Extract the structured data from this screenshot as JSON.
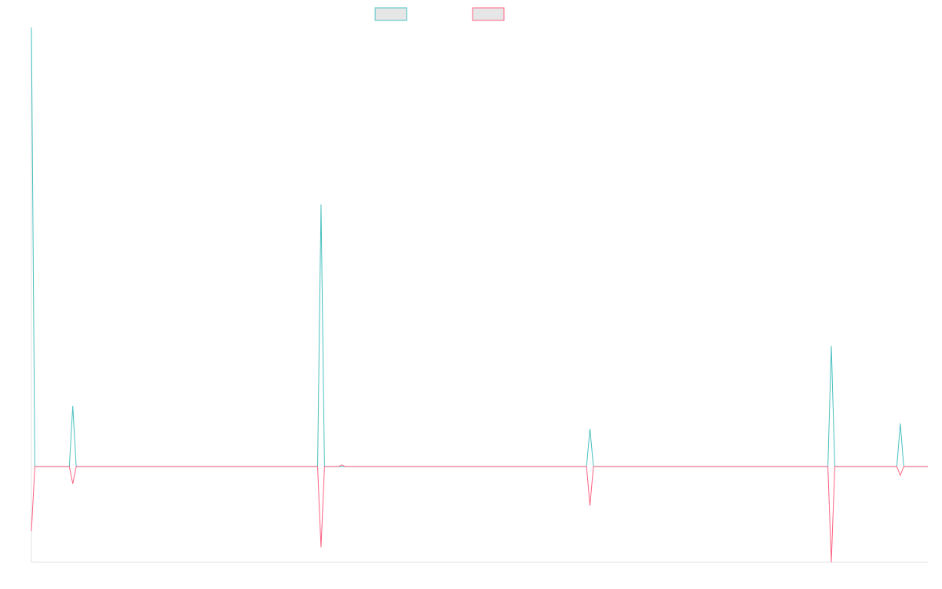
{
  "chart_data": {
    "type": "line",
    "legend": "top",
    "x": [
      0,
      1,
      11,
      12,
      13,
      83,
      84,
      85,
      89,
      90,
      91,
      161,
      162,
      163,
      231,
      232,
      233,
      251,
      252,
      253,
      260
    ],
    "xlim": [
      0,
      260
    ],
    "ylim": [
      -218,
      1000
    ],
    "series": [
      {
        "color": "#4bc0c0",
        "values": [
          1000,
          0,
          0,
          138,
          0,
          0,
          597,
          0,
          0,
          0,
          0,
          0,
          86,
          0,
          0,
          275,
          0,
          0,
          98,
          0,
          0
        ]
      },
      {
        "color": "#ff6384",
        "values": [
          -147,
          0,
          0,
          -39,
          0,
          0,
          -184,
          0,
          0,
          4,
          0,
          0,
          -89,
          0,
          0,
          -218,
          0,
          0,
          -20,
          0,
          0
        ]
      }
    ]
  }
}
